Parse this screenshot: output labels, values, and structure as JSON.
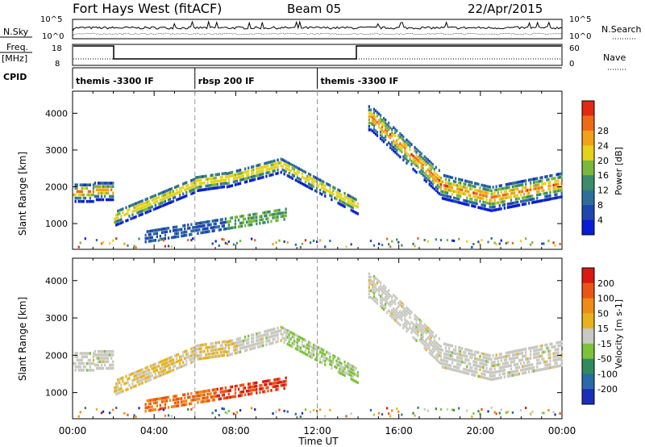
{
  "header": {
    "title": "Fort Hays West (fitACF)",
    "beam": "Beam 05",
    "date": "22/Apr/2015"
  },
  "panels": {
    "nsky_label": "N.Sky",
    "nsky_ticks": [
      "10^5",
      "10^0"
    ],
    "nsearch_label": "N.Search",
    "nsearch_ticks": [
      "10^5",
      "10^0"
    ],
    "freq_label": "Freq.",
    "freq_unit": "[MHz]",
    "freq_ticks": [
      "18",
      "8"
    ],
    "nave_label": "Nave",
    "nave_ticks": [
      "60",
      "0"
    ],
    "cpid_label": "CPID"
  },
  "cpid_segments": [
    {
      "start": 0.0,
      "label": "themis -3300 IF"
    },
    {
      "start": 6.0,
      "label": "rbsp 200 IF"
    },
    {
      "start": 12.0,
      "label": "themis -3300 IF"
    }
  ],
  "chart_data": [
    {
      "type": "heatmap",
      "name": "power",
      "ylabel": "Slant Range [km]",
      "xlabel": "Time UT",
      "xlim": [
        0,
        24
      ],
      "ylim": [
        300,
        4600
      ],
      "yticks": [
        "1000",
        "2000",
        "3000",
        "4000"
      ],
      "xticks": [
        "00:00",
        "04:00",
        "08:00",
        "12:00",
        "16:00",
        "20:00",
        "00:00"
      ],
      "colorbar": {
        "label": "Power [dB]",
        "ticks": [
          "4",
          "8",
          "12",
          "16",
          "20",
          "24",
          "28"
        ],
        "colors": [
          "#0a1bd6",
          "#1f45b0",
          "#2e6f9a",
          "#3a8c6a",
          "#7ab83a",
          "#e6d21a",
          "#f2a219",
          "#ef6a16",
          "#e02a12"
        ]
      }
    },
    {
      "type": "heatmap",
      "name": "velocity",
      "ylabel": "Slant Range [km]",
      "xlabel": "Time UT",
      "xlim": [
        0,
        24
      ],
      "ylim": [
        300,
        4600
      ],
      "yticks": [
        "1000",
        "2000",
        "3000",
        "4000"
      ],
      "xticks": [
        "00:00",
        "04:00",
        "08:00",
        "12:00",
        "16:00",
        "20:00",
        "00:00"
      ],
      "colorbar": {
        "label": "Velocity [m s-1]",
        "ticks": [
          "200",
          "100",
          "50",
          "15",
          "-15",
          "-50",
          "-100",
          "-200"
        ],
        "colors": [
          "#1a2fb8",
          "#2b6aa8",
          "#2f8a5e",
          "#7cc23a",
          "#c9c9c2",
          "#e8b21c",
          "#f08a18",
          "#ea5515",
          "#d81a12"
        ]
      }
    }
  ],
  "xaxis_title": "Time UT"
}
